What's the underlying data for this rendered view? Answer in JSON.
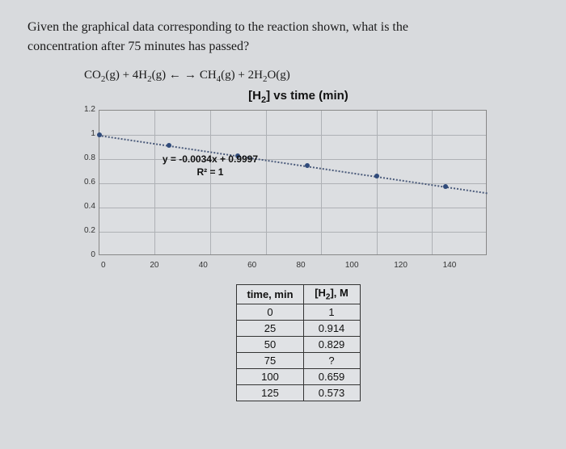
{
  "question": {
    "line1": "Given the graphical data corresponding to the reaction shown, what is the",
    "line2": "concentration after 75 minutes has passed?"
  },
  "equation": "CO₂(g) + 4H₂(g) ← → CH₄(g) + 2H₂O(g)",
  "chart": {
    "title_prefix": "[H",
    "title_sub": "2",
    "title_suffix": "] vs time (min)",
    "ylim": [
      0,
      1.2
    ],
    "xlim": [
      0,
      140
    ],
    "yticks": [
      "1.2",
      "1",
      "0.8",
      "0.6",
      "0.4",
      "0.2",
      "0"
    ],
    "xticks": [
      "0",
      "20",
      "40",
      "60",
      "80",
      "100",
      "120",
      "140"
    ],
    "grid_color": "#aeb1b5",
    "point_color": "#2f4a7a",
    "trend_color": "#4a5a7a",
    "points": [
      {
        "x": 0,
        "y": 1.0
      },
      {
        "x": 25,
        "y": 0.914
      },
      {
        "x": 50,
        "y": 0.829
      },
      {
        "x": 75,
        "y": 0.745
      },
      {
        "x": 100,
        "y": 0.659
      },
      {
        "x": 125,
        "y": 0.573
      }
    ],
    "trend": {
      "slope": -0.0034,
      "intercept": 0.9997
    },
    "eq_line1": "y = -0.0034x + 0.9997",
    "eq_line2": "R² = 1"
  },
  "table": {
    "header1": "time, min",
    "header2_prefix": "[H",
    "header2_sub": "2",
    "header2_suffix": "], M",
    "rows": [
      {
        "t": "0",
        "c": "1"
      },
      {
        "t": "25",
        "c": "0.914"
      },
      {
        "t": "50",
        "c": "0.829"
      },
      {
        "t": "75",
        "c": "?"
      },
      {
        "t": "100",
        "c": "0.659"
      },
      {
        "t": "125",
        "c": "0.573"
      }
    ]
  }
}
